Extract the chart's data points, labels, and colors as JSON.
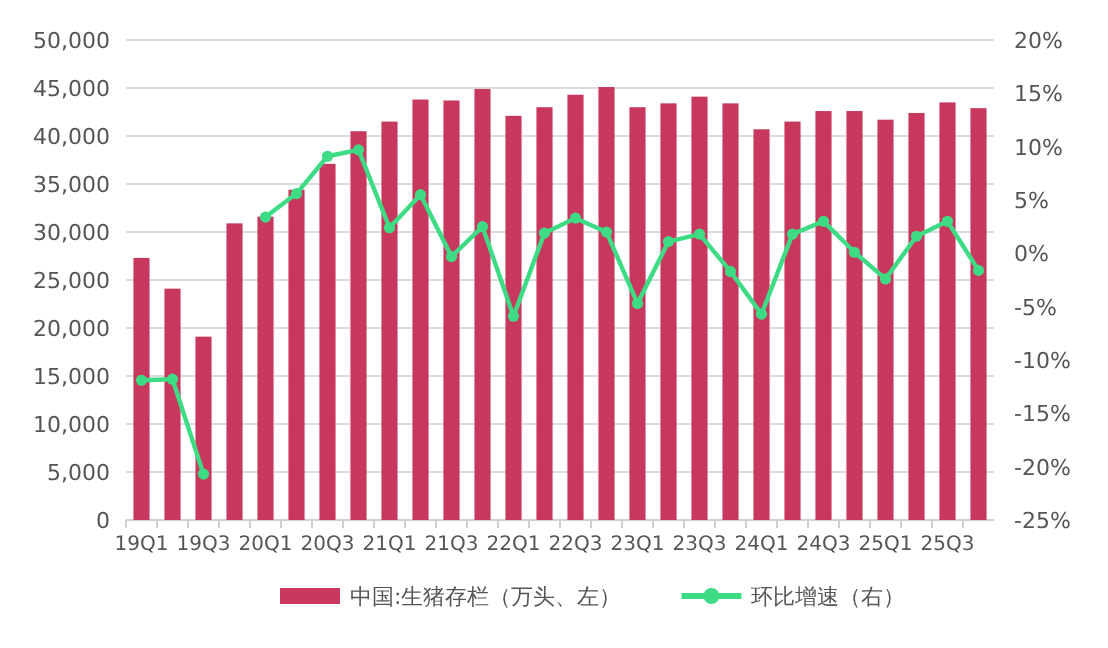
{
  "chart_data": {
    "type": "bar",
    "categories": [
      "19Q1",
      null,
      "19Q3",
      null,
      "20Q1",
      null,
      "20Q3",
      null,
      "21Q1",
      null,
      "21Q3",
      null,
      "22Q1",
      null,
      "22Q3",
      null,
      "23Q1",
      null,
      "23Q3",
      null,
      "24Q1",
      null,
      "24Q3",
      null,
      "25Q1",
      null,
      "25Q3",
      null
    ],
    "series": [
      {
        "name": "中国:生猪存栏（万头、左）",
        "color": "#c8385e",
        "values": [
          27300,
          24100,
          19100,
          30900,
          31600,
          34400,
          37100,
          40500,
          41500,
          43800,
          43700,
          44900,
          42100,
          43000,
          44300,
          45100,
          43000,
          43400,
          44100,
          43400,
          40700,
          41500,
          42600,
          42600,
          41700,
          42400,
          43500,
          42900
        ]
      },
      {
        "name": "环比增速（右）",
        "type": "line",
        "axis": "y2",
        "color": "#3ddc84",
        "marker": "circle",
        "values": [
          -11.9,
          -11.8,
          -20.7,
          null,
          3.4,
          5.6,
          9.1,
          9.7,
          2.4,
          5.5,
          -0.3,
          2.5,
          -5.9,
          1.9,
          3.3,
          2.0,
          -4.7,
          1.1,
          1.8,
          -1.7,
          -5.7,
          1.8,
          3.0,
          0.1,
          -2.4,
          1.6,
          3.0,
          -1.6
        ]
      }
    ],
    "ylim": [
      0,
      50000
    ],
    "yticks": [
      {
        "value": 0,
        "label": "0"
      },
      {
        "value": 5000,
        "label": "5,000"
      },
      {
        "value": 10000,
        "label": "10,000"
      },
      {
        "value": 15000,
        "label": "15,000"
      },
      {
        "value": 20000,
        "label": "20,000"
      },
      {
        "value": 25000,
        "label": "25,000"
      },
      {
        "value": 30000,
        "label": "30,000"
      },
      {
        "value": 35000,
        "label": "35,000"
      },
      {
        "value": 40000,
        "label": "40,000"
      },
      {
        "value": 45000,
        "label": "45,000"
      },
      {
        "value": 50000,
        "label": "50,000"
      }
    ],
    "y2lim": [
      -25,
      20
    ],
    "y2ticks": [
      {
        "value": -25,
        "label": "-25%"
      },
      {
        "value": -20,
        "label": "-20%"
      },
      {
        "value": -15,
        "label": "-15%"
      },
      {
        "value": -10,
        "label": "-10%"
      },
      {
        "value": -5,
        "label": "-5%"
      },
      {
        "value": 0,
        "label": "0%"
      },
      {
        "value": 5,
        "label": "5%"
      },
      {
        "value": 10,
        "label": "10%"
      },
      {
        "value": 15,
        "label": "15%"
      },
      {
        "value": 20,
        "label": "20%"
      }
    ],
    "grid": "y",
    "legend": "bottom"
  }
}
